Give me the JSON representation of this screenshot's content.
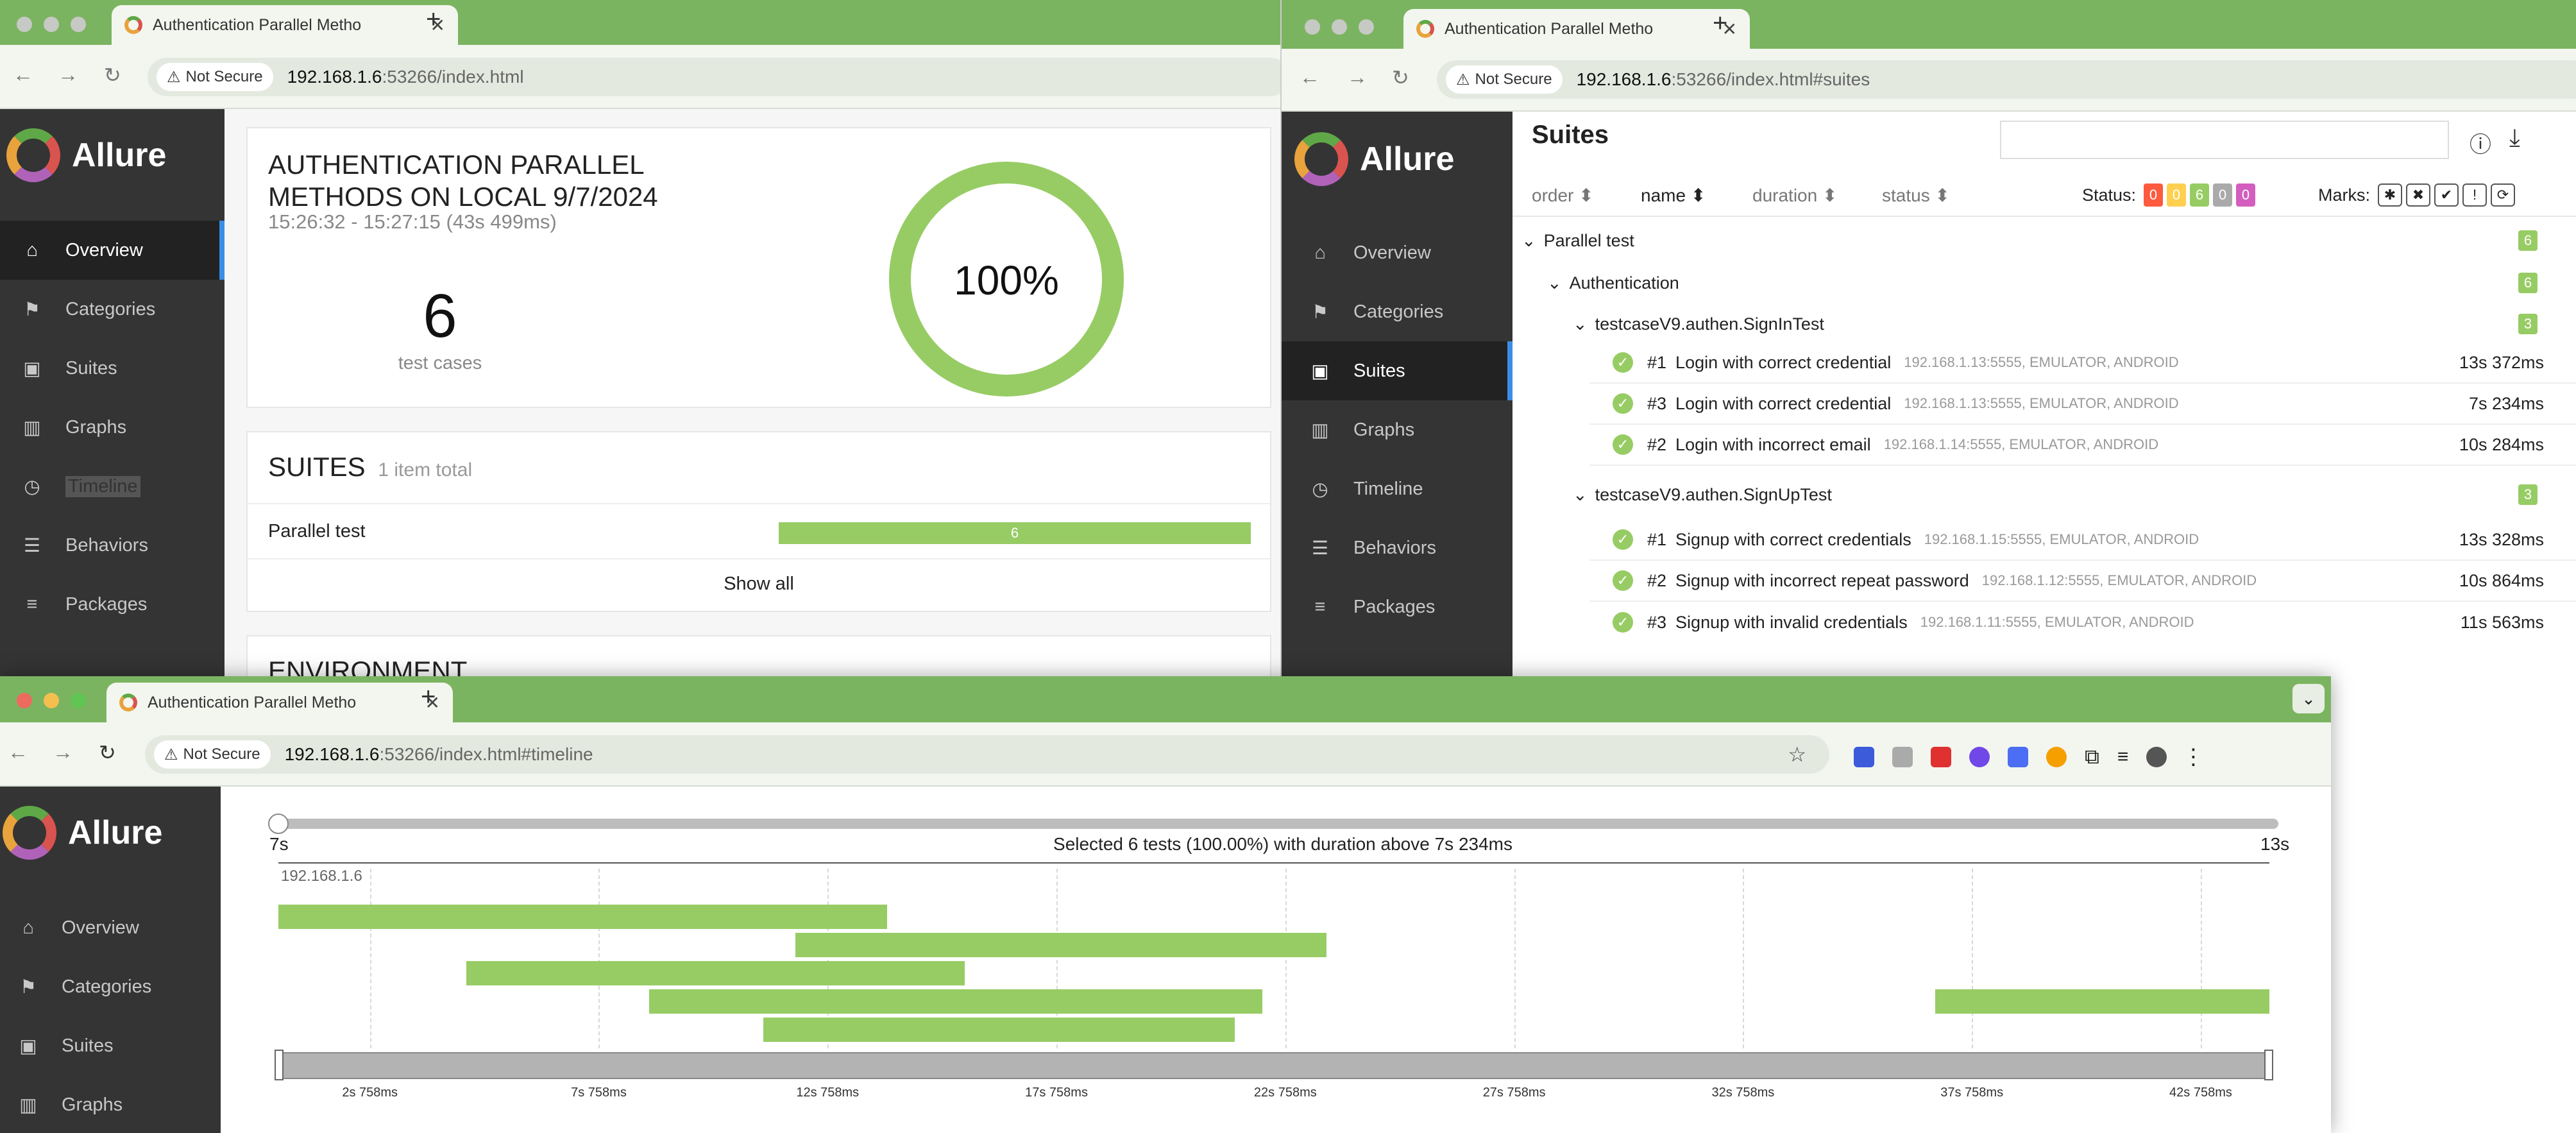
{
  "browser": {
    "tab_title": "Authentication Parallel Metho",
    "not_secure": "Not Secure",
    "host": "192.168.1.6",
    "port_path_overview": ":53266/index.html",
    "port_path_suites": ":53266/index.html#suites",
    "port_path_timeline": ":53266/index.html#timeline"
  },
  "app": {
    "brand": "Allure",
    "nav": [
      "Overview",
      "Categories",
      "Suites",
      "Graphs",
      "Timeline",
      "Behaviors",
      "Packages"
    ]
  },
  "overview": {
    "title": "AUTHENTICATION PARALLEL METHODS ON LOCAL 9/7/2024",
    "time_range": "15:26:32 - 15:27:15 (43s 499ms)",
    "test_cases_count": "6",
    "test_cases_label": "test cases",
    "success_rate": "100%",
    "suites_heading": "SUITES",
    "suites_total": "1 item total",
    "suites": [
      {
        "name": "Parallel test",
        "count": "6"
      }
    ],
    "show_all": "Show all",
    "environment_heading": "ENVIRONMENT"
  },
  "suites_page": {
    "heading": "Suites",
    "search_value": "",
    "sort_columns": [
      "order",
      "name",
      "duration",
      "status"
    ],
    "status_label": "Status:",
    "status_counts": [
      {
        "value": "0",
        "color": "#fd5a3e"
      },
      {
        "value": "0",
        "color": "#ffd050"
      },
      {
        "value": "6",
        "color": "#97cc64"
      },
      {
        "value": "0",
        "color": "#aaaaaa"
      },
      {
        "value": "0",
        "color": "#d35ebe"
      }
    ],
    "marks_label": "Marks:",
    "tree": {
      "root": {
        "name": "Parallel test",
        "count": "6"
      },
      "group": {
        "name": "Authentication",
        "count": "6"
      },
      "classes": [
        {
          "name": "testcaseV9.authen.SignInTest",
          "count": "3",
          "tests": [
            {
              "num": "#1",
              "name": "Login with correct credential",
              "meta": "192.168.1.13:5555, EMULATOR, ANDROID",
              "duration": "13s 372ms"
            },
            {
              "num": "#3",
              "name": "Login with correct credential",
              "meta": "192.168.1.13:5555, EMULATOR, ANDROID",
              "duration": "7s 234ms"
            },
            {
              "num": "#2",
              "name": "Login with incorrect email",
              "meta": "192.168.1.14:5555, EMULATOR, ANDROID",
              "duration": "10s 284ms"
            }
          ]
        },
        {
          "name": "testcaseV9.authen.SignUpTest",
          "count": "3",
          "tests": [
            {
              "num": "#1",
              "name": "Signup with correct credentials",
              "meta": "192.168.1.15:5555, EMULATOR, ANDROID",
              "duration": "13s 328ms"
            },
            {
              "num": "#2",
              "name": "Signup with incorrect repeat password",
              "meta": "192.168.1.12:5555, EMULATOR, ANDROID",
              "duration": "10s 864ms"
            },
            {
              "num": "#3",
              "name": "Signup with invalid credentials",
              "meta": "192.168.1.11:5555, EMULATOR, ANDROID",
              "duration": "11s 563ms"
            }
          ]
        }
      ]
    }
  },
  "timeline": {
    "slider_min": "7s",
    "slider_max": "13s",
    "selection_text": "Selected 6 tests (100.00%) with duration above 7s 234ms",
    "host_label": "192.168.1.6",
    "ticks": [
      "2s 758ms",
      "7s 758ms",
      "12s 758ms",
      "17s 758ms",
      "22s 758ms",
      "27s 758ms",
      "32s 758ms",
      "37s 758ms",
      "42s 758ms"
    ],
    "bars_seconds": [
      {
        "start": 0.0,
        "end": 13.3
      },
      {
        "start": 11.3,
        "end": 22.9
      },
      {
        "start": 4.1,
        "end": 15.0
      },
      {
        "start": 8.1,
        "end": 21.5
      },
      {
        "start": 10.6,
        "end": 20.9
      },
      {
        "start": 36.2,
        "end": 43.5
      }
    ],
    "axis_start": 0,
    "axis_end": 43.5
  }
}
